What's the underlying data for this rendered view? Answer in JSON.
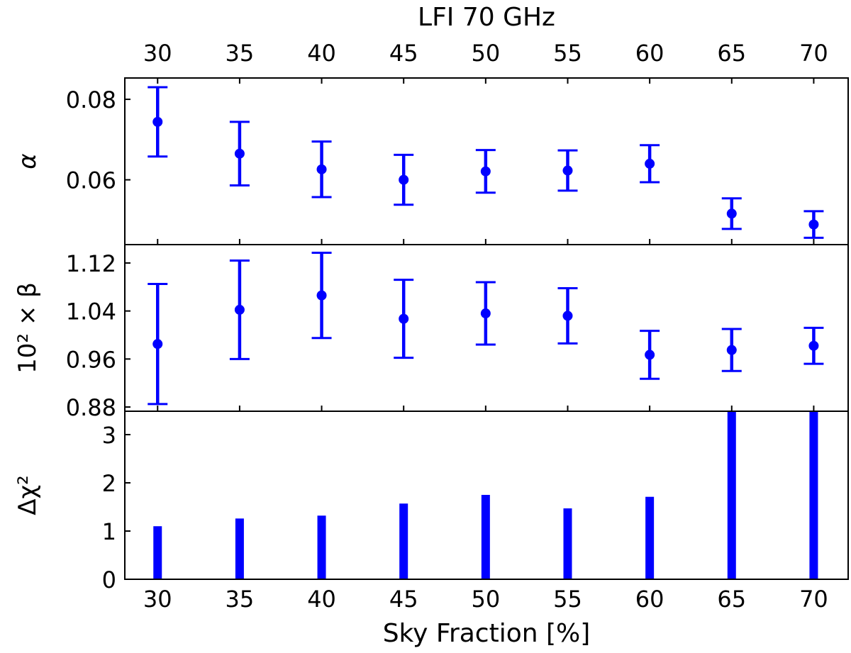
{
  "chart_data": {
    "type": "errorbar-stack",
    "title": "LFI 70 GHz",
    "xlabel": "Sky Fraction [%]",
    "x": [
      30,
      35,
      40,
      45,
      50,
      55,
      60,
      65,
      70
    ],
    "xticks": [
      "30",
      "35",
      "40",
      "45",
      "50",
      "55",
      "60",
      "65",
      "70"
    ],
    "xlim": [
      28,
      72.1
    ],
    "color": "#0000ff",
    "panels": [
      {
        "type": "errorbar",
        "ylabel": "α",
        "ylim": [
          0.0439,
          0.0853
        ],
        "yticks": [
          0.06,
          0.08
        ],
        "ytick_labels": [
          "0.06",
          "0.08"
        ],
        "values": [
          0.0744,
          0.0665,
          0.0626,
          0.06,
          0.0621,
          0.0623,
          0.064,
          0.0516,
          0.0489
        ],
        "errors": [
          0.0086,
          0.0079,
          0.0069,
          0.0062,
          0.0053,
          0.005,
          0.0046,
          0.0038,
          0.0033
        ]
      },
      {
        "type": "errorbar",
        "ylabel": "10² × β",
        "ylim": [
          0.873,
          1.1506
        ],
        "yticks": [
          0.88,
          0.96,
          1.04,
          1.12
        ],
        "ytick_labels": [
          "0.88",
          "0.96",
          "1.04",
          "1.12"
        ],
        "values": [
          0.985,
          1.042,
          1.066,
          1.027,
          1.036,
          1.032,
          0.967,
          0.975,
          0.982
        ],
        "errors": [
          0.1,
          0.082,
          0.071,
          0.065,
          0.052,
          0.046,
          0.04,
          0.035,
          0.03
        ]
      },
      {
        "type": "bar",
        "ylabel": "Δχ²",
        "ylim": [
          0,
          3.485
        ],
        "yticks": [
          0,
          1,
          2,
          3
        ],
        "ytick_labels": [
          "0",
          "1",
          "2",
          "3"
        ],
        "values": [
          1.1,
          1.26,
          1.32,
          1.57,
          1.75,
          1.47,
          1.71,
          3.5,
          3.5
        ]
      }
    ]
  }
}
